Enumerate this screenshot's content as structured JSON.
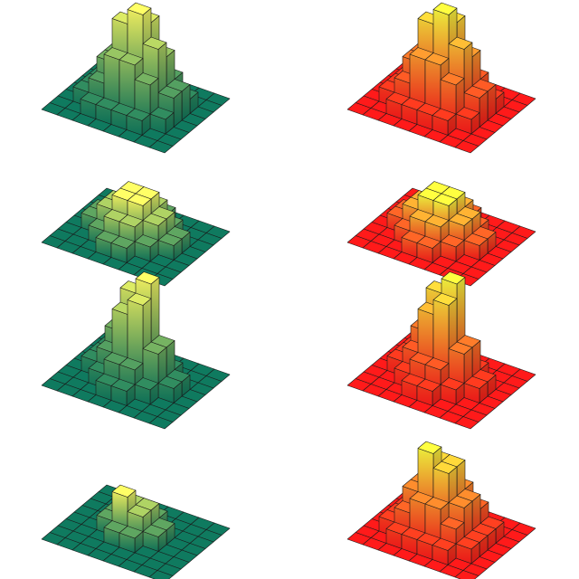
{
  "figure": {
    "title": ""
  },
  "palettes": {
    "summer": {
      "low": "#0f7a5f",
      "high": "#ffff66",
      "edge": "#1a1a1a"
    },
    "autumn": {
      "low": "#ff1a1a",
      "high": "#ffff40",
      "edge": "#1a1a1a"
    }
  },
  "chart_data": [
    {
      "type": "bar3d",
      "colormap": "summer",
      "position": "row1-left",
      "z": [
        [
          0,
          0,
          0,
          0,
          0,
          0,
          0,
          0
        ],
        [
          0,
          0,
          1,
          1,
          1,
          0,
          0,
          0
        ],
        [
          0,
          1,
          2,
          3,
          3,
          2,
          1,
          0
        ],
        [
          0,
          1,
          3,
          5,
          6,
          4,
          2,
          0
        ],
        [
          0,
          1,
          3,
          6,
          7,
          5,
          2,
          0
        ],
        [
          0,
          1,
          2,
          4,
          4,
          3,
          1,
          0
        ],
        [
          0,
          0,
          1,
          1,
          1,
          1,
          0,
          0
        ],
        [
          0,
          0,
          0,
          0,
          0,
          0,
          0,
          0
        ]
      ]
    },
    {
      "type": "bar3d",
      "colormap": "autumn",
      "position": "row1-right",
      "z": [
        [
          0,
          0,
          0,
          0,
          0,
          0,
          0,
          0
        ],
        [
          0,
          0,
          1,
          1,
          1,
          0,
          0,
          0
        ],
        [
          0,
          1,
          2,
          3,
          3,
          2,
          1,
          0
        ],
        [
          0,
          1,
          3,
          5,
          6,
          4,
          2,
          0
        ],
        [
          0,
          1,
          3,
          6,
          7,
          5,
          2,
          0
        ],
        [
          0,
          1,
          2,
          4,
          4,
          3,
          1,
          0
        ],
        [
          0,
          0,
          1,
          1,
          1,
          1,
          0,
          0
        ],
        [
          0,
          0,
          0,
          0,
          0,
          0,
          0,
          0
        ]
      ]
    },
    {
      "type": "bar3d",
      "colormap": "summer",
      "position": "row2-left",
      "z": [
        [
          0,
          0,
          0,
          0,
          0,
          0,
          0,
          0
        ],
        [
          0,
          0,
          0,
          1,
          1,
          0,
          0,
          0
        ],
        [
          0,
          0,
          1,
          2,
          2,
          1,
          0,
          0
        ],
        [
          0,
          1,
          2,
          3,
          3,
          2,
          1,
          0
        ],
        [
          0,
          1,
          2,
          3,
          3,
          2,
          1,
          0
        ],
        [
          0,
          0,
          1,
          2,
          2,
          1,
          0,
          0
        ],
        [
          0,
          0,
          0,
          1,
          1,
          0,
          0,
          0
        ],
        [
          0,
          0,
          0,
          0,
          0,
          0,
          0,
          0
        ]
      ]
    },
    {
      "type": "bar3d",
      "colormap": "autumn",
      "position": "row2-right",
      "z": [
        [
          0,
          0,
          0,
          0,
          0,
          0,
          0,
          0
        ],
        [
          0,
          0,
          0,
          1,
          1,
          0,
          0,
          0
        ],
        [
          0,
          0,
          1,
          2,
          2,
          1,
          0,
          0
        ],
        [
          0,
          1,
          2,
          3,
          3,
          2,
          1,
          0
        ],
        [
          0,
          1,
          2,
          3,
          3,
          2,
          1,
          0
        ],
        [
          0,
          0,
          1,
          2,
          2,
          1,
          0,
          0
        ],
        [
          0,
          0,
          0,
          1,
          1,
          0,
          0,
          0
        ],
        [
          0,
          0,
          0,
          0,
          0,
          0,
          0,
          0
        ]
      ]
    },
    {
      "type": "bar3d",
      "colormap": "summer",
      "position": "row3-left",
      "z": [
        [
          0,
          0,
          0,
          0,
          0,
          0,
          0,
          0
        ],
        [
          0,
          0,
          1,
          1,
          0,
          0,
          0,
          0
        ],
        [
          0,
          1,
          2,
          3,
          2,
          1,
          0,
          0
        ],
        [
          0,
          1,
          3,
          6,
          7,
          3,
          1,
          0
        ],
        [
          0,
          1,
          2,
          5,
          6,
          3,
          1,
          0
        ],
        [
          0,
          0,
          1,
          2,
          2,
          1,
          0,
          0
        ],
        [
          0,
          0,
          0,
          1,
          1,
          0,
          0,
          0
        ],
        [
          0,
          0,
          0,
          0,
          0,
          0,
          0,
          0
        ]
      ]
    },
    {
      "type": "bar3d",
      "colormap": "autumn",
      "position": "row3-right",
      "z": [
        [
          0,
          0,
          0,
          0,
          0,
          0,
          0,
          0
        ],
        [
          0,
          0,
          1,
          1,
          0,
          0,
          0,
          0
        ],
        [
          0,
          1,
          2,
          3,
          2,
          1,
          0,
          0
        ],
        [
          0,
          1,
          3,
          6,
          7,
          3,
          1,
          0
        ],
        [
          0,
          1,
          2,
          5,
          6,
          3,
          1,
          0
        ],
        [
          0,
          0,
          1,
          2,
          2,
          1,
          0,
          0
        ],
        [
          0,
          0,
          0,
          1,
          1,
          0,
          0,
          0
        ],
        [
          0,
          0,
          0,
          0,
          0,
          0,
          0,
          0
        ]
      ]
    },
    {
      "type": "bar3d",
      "colormap": "summer",
      "position": "row4-left",
      "z": [
        [
          0,
          0,
          0,
          0,
          0,
          0,
          0,
          0
        ],
        [
          0,
          0,
          0,
          0,
          0,
          0,
          0,
          0
        ],
        [
          0,
          0,
          0,
          1,
          1,
          0,
          0,
          0
        ],
        [
          0,
          0,
          1,
          2,
          2,
          1,
          0,
          0
        ],
        [
          0,
          0,
          1,
          3,
          2,
          1,
          0,
          0
        ],
        [
          0,
          0,
          0,
          1,
          1,
          0,
          0,
          0
        ],
        [
          0,
          0,
          0,
          0,
          0,
          0,
          0,
          0
        ],
        [
          0,
          0,
          0,
          0,
          0,
          0,
          0,
          0
        ]
      ]
    },
    {
      "type": "bar3d",
      "colormap": "autumn",
      "position": "row4-right",
      "z": [
        [
          0,
          0,
          0,
          0,
          0,
          0,
          0,
          0
        ],
        [
          0,
          0,
          1,
          1,
          1,
          0,
          0,
          0
        ],
        [
          0,
          1,
          2,
          3,
          3,
          2,
          1,
          0
        ],
        [
          0,
          1,
          3,
          5,
          5,
          3,
          1,
          0
        ],
        [
          0,
          1,
          3,
          6,
          5,
          3,
          1,
          0
        ],
        [
          0,
          1,
          2,
          3,
          3,
          2,
          1,
          0
        ],
        [
          0,
          0,
          1,
          1,
          1,
          1,
          0,
          0
        ],
        [
          0,
          0,
          0,
          0,
          0,
          0,
          0,
          0
        ]
      ]
    }
  ]
}
